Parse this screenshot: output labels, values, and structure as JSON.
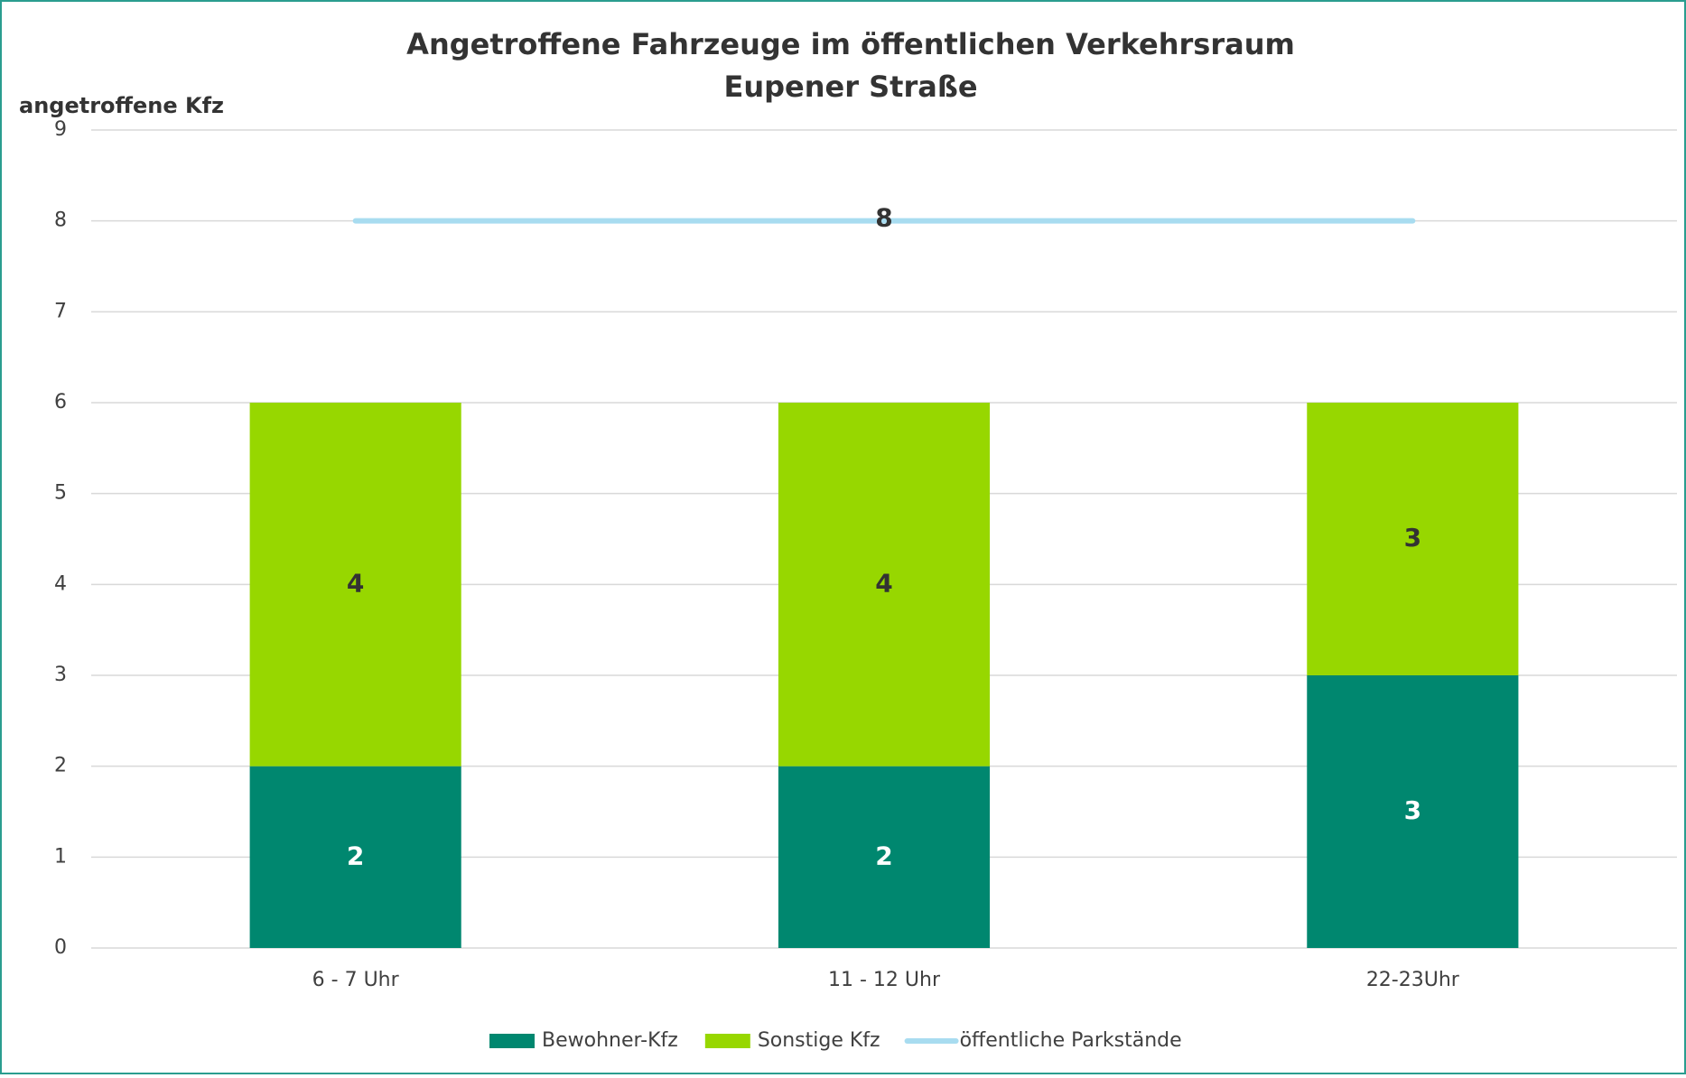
{
  "chart_data": {
    "type": "bar",
    "stacked": true,
    "title": "Angetroffene Fahrzeuge im öffentlichen Verkehrsraum",
    "subtitle": "Eupener Straße",
    "y_label": "angetroffene Kfz",
    "categories": [
      "6 - 7 Uhr",
      "11 - 12 Uhr",
      "22-23Uhr"
    ],
    "series": [
      {
        "name": "Bewohner-Kfz",
        "color": "#00876f",
        "values": [
          2,
          2,
          3
        ]
      },
      {
        "name": "Sonstige Kfz",
        "color": "#97d700",
        "values": [
          4,
          4,
          3
        ]
      },
      {
        "name": "öffentliche Parkstände",
        "type": "line",
        "color": "#a8dcf0",
        "values": [
          8,
          8,
          8
        ],
        "value_labels": [
          null,
          8,
          null
        ]
      }
    ],
    "ylim": [
      0,
      9
    ],
    "yticks": [
      0,
      1,
      2,
      3,
      4,
      5,
      6,
      7,
      8,
      9
    ],
    "grid": true,
    "legend": "bottom"
  }
}
